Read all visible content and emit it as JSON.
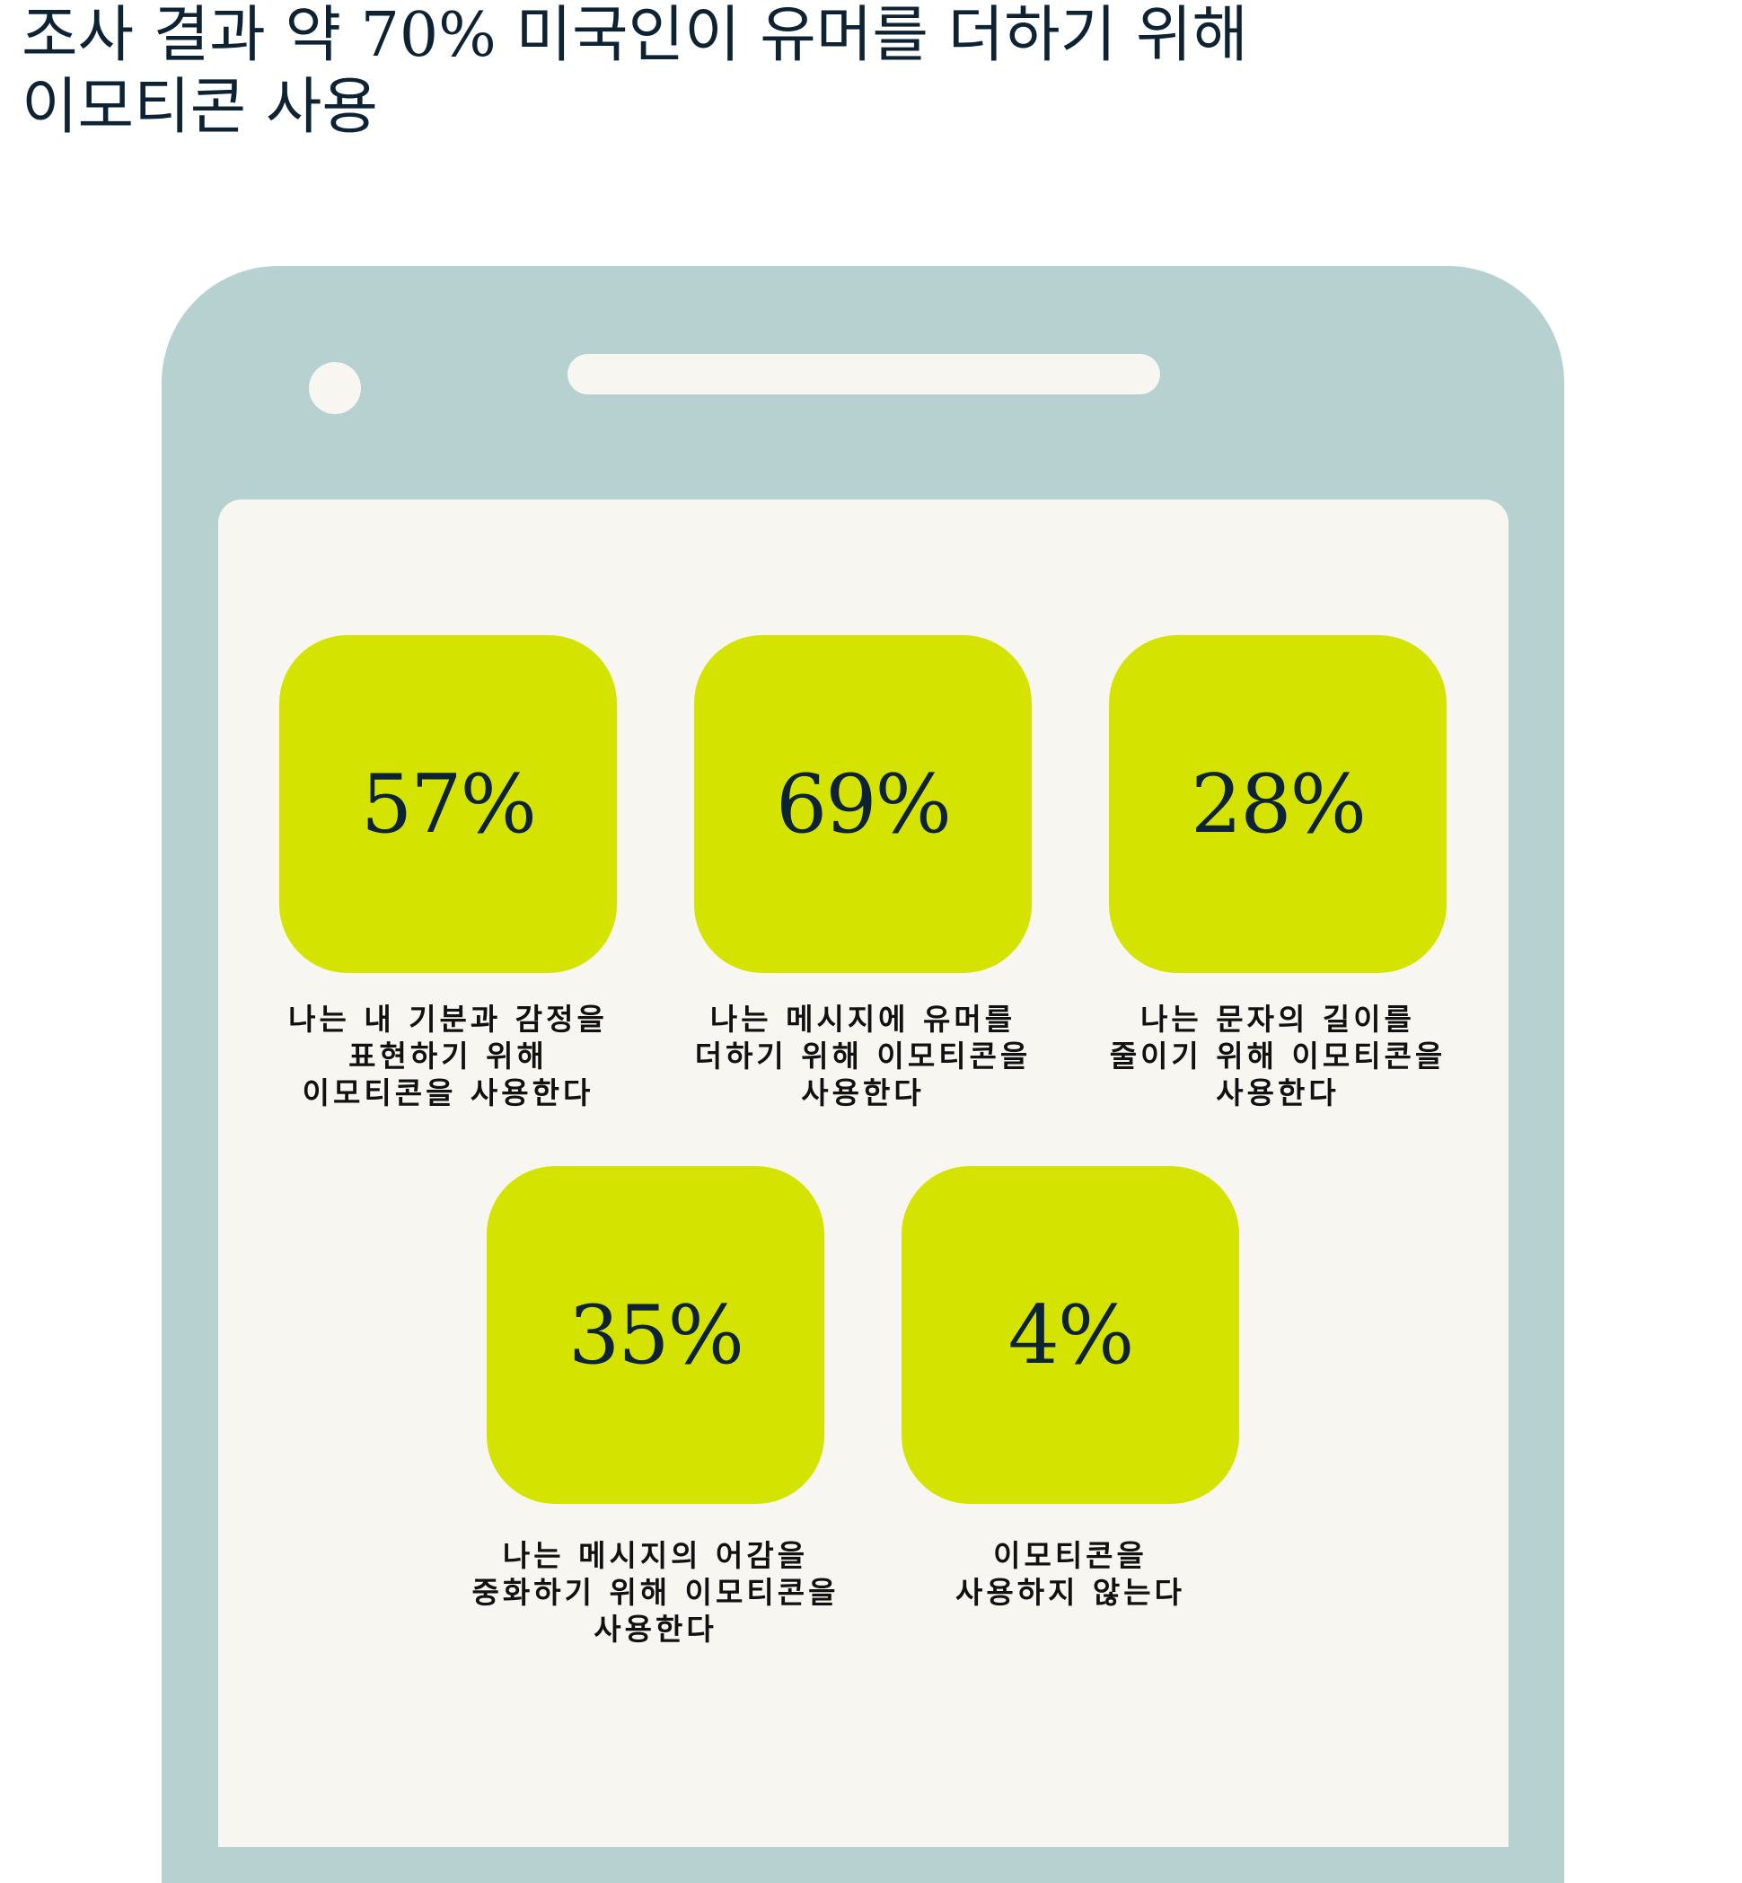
{
  "title": "조사 결과 약 70% 미국인이 유머를 더하기 위해\n이모티콘 사용",
  "colors": {
    "phone": "#b7d1d1",
    "screen": "#f7f6f1",
    "tile": "#d4e400",
    "text": "#0d2233"
  },
  "stats": [
    {
      "value": "57%",
      "label": "나는 내 기분과 감정을\n표현하기 위해\n이모티콘을 사용한다"
    },
    {
      "value": "69%",
      "label": "나는 메시지에 유머를\n더하기 위해 이모티콘을\n사용한다"
    },
    {
      "value": "28%",
      "label": "나는 문자의 길이를\n줄이기 위해 이모티콘을\n사용한다"
    },
    {
      "value": "35%",
      "label": "나는 메시지의 어감을\n중화하기 위해 이모티콘을\n사용한다"
    },
    {
      "value": "4%",
      "label": "이모티콘을\n사용하지 않는다"
    }
  ]
}
